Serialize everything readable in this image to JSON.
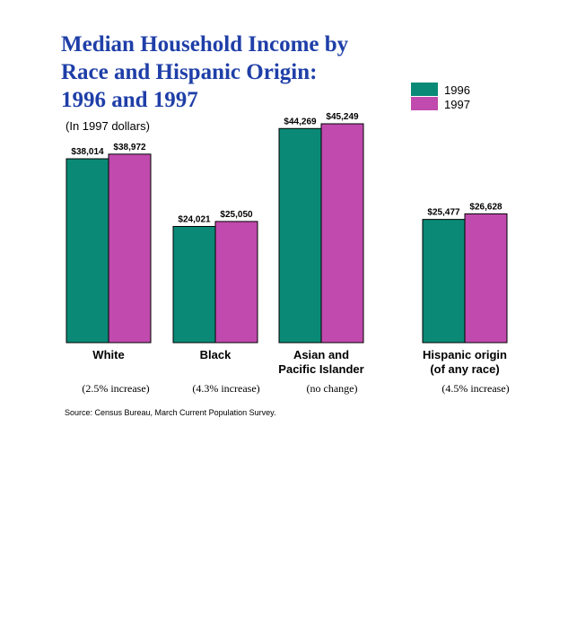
{
  "chart_data": {
    "type": "bar",
    "title_lines": [
      "Median Household Income by",
      "Race and Hispanic Origin:",
      "1996 and 1997"
    ],
    "subtitle": "(In 1997 dollars)",
    "categories": [
      {
        "lines": [
          "White"
        ],
        "change": "(2.5% increase)"
      },
      {
        "lines": [
          "Black"
        ],
        "change": "(4.3% increase)"
      },
      {
        "lines": [
          "Asian and",
          "Pacific Islander"
        ],
        "change": "(no change)"
      },
      {
        "lines": [
          "Hispanic origin",
          "(of any race)"
        ],
        "change": "(4.5% increase)"
      }
    ],
    "series": [
      {
        "name": "1996",
        "color": "#0a8a76",
        "values": [
          38014,
          24021,
          44269,
          25477
        ],
        "labels": [
          "$38,014",
          "$24,021",
          "$44,269",
          "$25,477"
        ]
      },
      {
        "name": "1997",
        "color": "#c04aad",
        "values": [
          38972,
          25050,
          45249,
          26628
        ],
        "labels": [
          "$38,972",
          "$25,050",
          "$45,249",
          "$26,628"
        ]
      }
    ],
    "ylim": [
      0,
      45249
    ],
    "legend_position": "top-right",
    "source": "Source:  Census Bureau, March Current Population Survey."
  }
}
